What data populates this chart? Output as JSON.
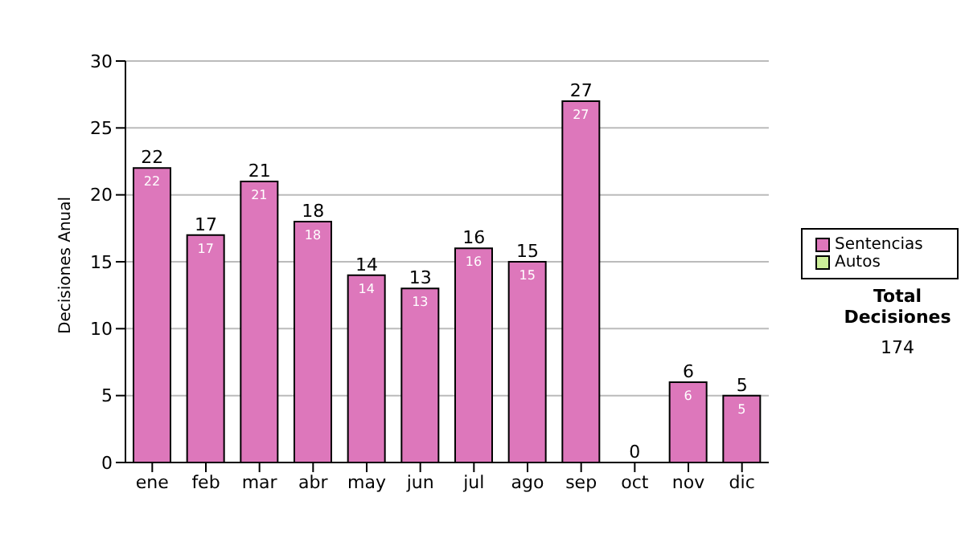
{
  "chart_data": {
    "type": "bar",
    "ylabel": "Decisiones Anual",
    "categories": [
      "ene",
      "feb",
      "mar",
      "abr",
      "may",
      "jun",
      "jul",
      "ago",
      "sep",
      "oct",
      "nov",
      "dic"
    ],
    "series": [
      {
        "name": "Sentencias",
        "color": "#dd77bb",
        "values": [
          22,
          17,
          21,
          18,
          14,
          13,
          16,
          15,
          27,
          0,
          6,
          5
        ],
        "value_labels": [
          "22",
          "17",
          "21",
          "18",
          "14",
          "13",
          "16",
          "15",
          "27",
          null,
          "6",
          "5"
        ]
      },
      {
        "name": "Autos",
        "color": "#ccee99",
        "values": [
          0,
          0,
          0,
          0,
          0,
          0,
          0,
          0,
          0,
          0,
          0,
          0
        ]
      }
    ],
    "stacked": true,
    "totals": [
      "22",
      "17",
      "21",
      "18",
      "14",
      "13",
      "16",
      "15",
      "27",
      "0",
      "6",
      "5"
    ],
    "ylim": [
      0,
      30
    ],
    "yticks": [
      0,
      5,
      10,
      15,
      20,
      25,
      30
    ],
    "grid": "y",
    "legend": "right",
    "annotations": [
      "Total Decisiones",
      "174"
    ]
  }
}
